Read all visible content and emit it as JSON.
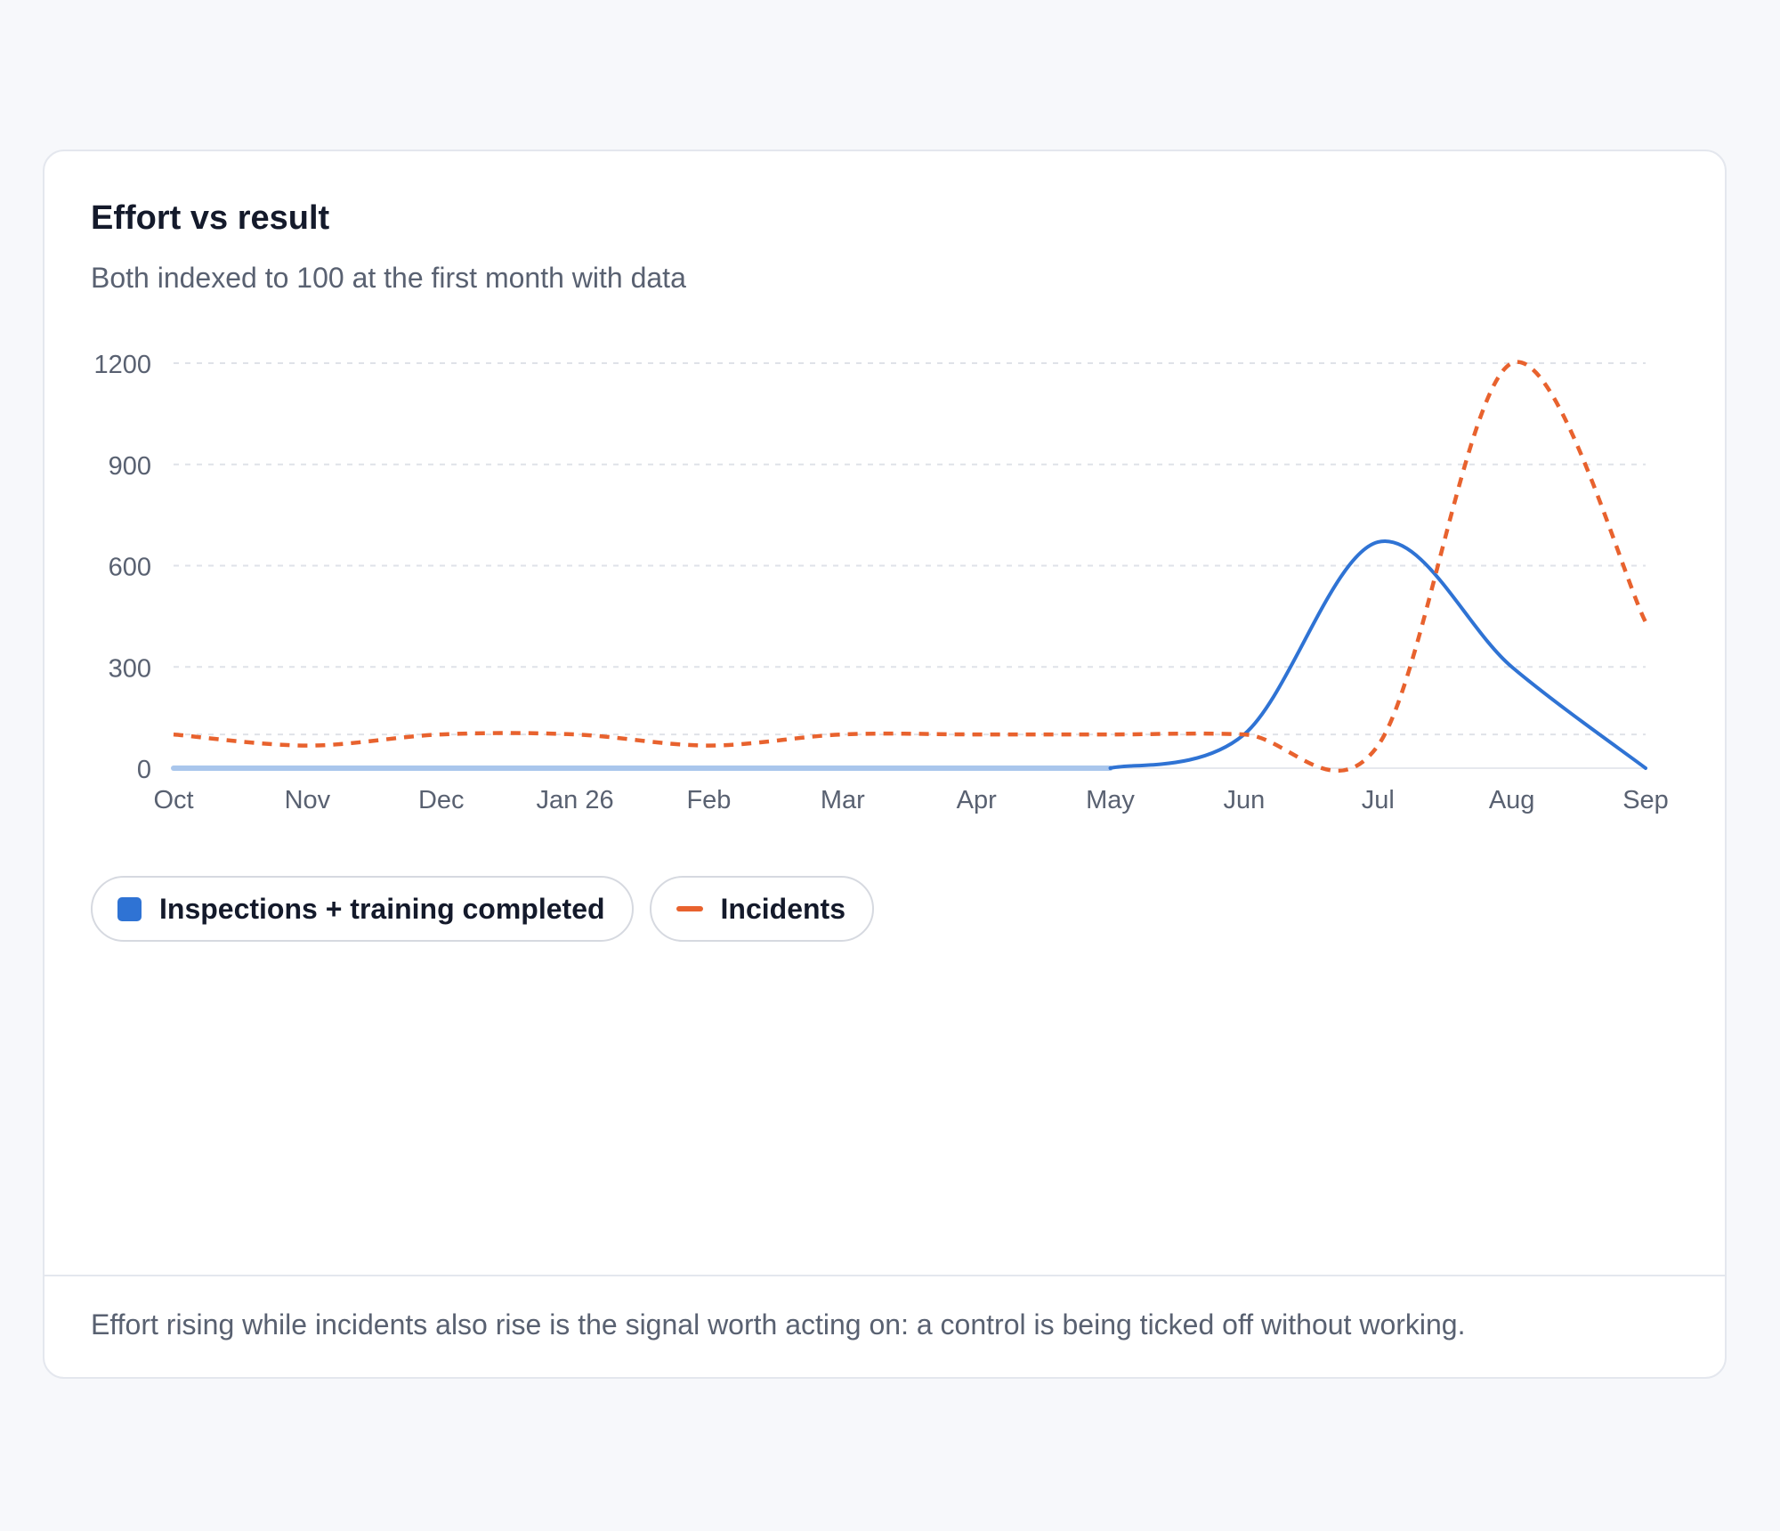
{
  "card": {
    "title": "Effort vs result",
    "subtitle": "Both indexed to 100 at the first month with data",
    "footer_note": "Effort rising while incidents also rise is the signal worth acting on: a control is being ticked off without working."
  },
  "chart_data": {
    "type": "line",
    "title": "Effort vs result",
    "subtitle": "Both indexed to 100 at the first month with data",
    "xlabel": "",
    "ylabel": "",
    "x": [
      "Oct",
      "Nov",
      "Dec",
      "Jan 26",
      "Feb",
      "Mar",
      "Apr",
      "May",
      "Jun",
      "Jul",
      "Aug",
      "Sep"
    ],
    "ylim": [
      0,
      1200
    ],
    "yticks": [
      0,
      300,
      600,
      900,
      1200
    ],
    "grid": "horizontal, dashed",
    "legend_position": "bottom-left",
    "series": [
      {
        "name": "Inspections + training completed",
        "color": "#2f73d4",
        "style": "solid",
        "values": [
          null,
          null,
          null,
          null,
          null,
          null,
          null,
          0,
          100,
          670,
          300,
          0
        ]
      },
      {
        "name": "Incidents",
        "color": "#e8622e",
        "style": "dashed",
        "values": [
          100,
          67,
          100,
          100,
          67,
          100,
          100,
          100,
          100,
          67,
          1200,
          433
        ]
      }
    ],
    "no_data_baseline_color": "#a9c6ec"
  }
}
